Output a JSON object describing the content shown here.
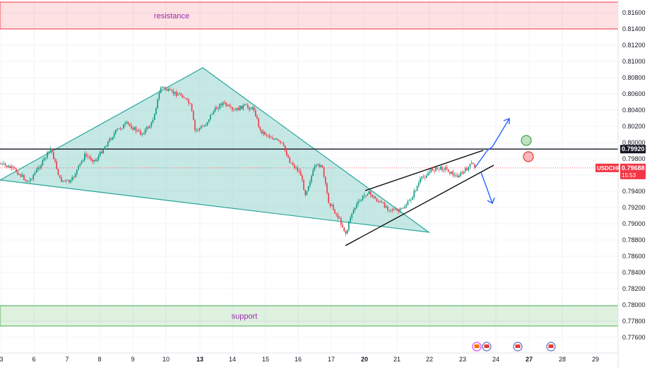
{
  "chart_data": {
    "type": "candlestick",
    "symbol": "USDCHF",
    "y_axis": {
      "min": 0.776,
      "max": 0.8172,
      "ticks": [
        "0.81600",
        "0.81400",
        "0.81200",
        "0.81000",
        "0.80800",
        "0.80600",
        "0.80400",
        "0.80200",
        "0.80000",
        "0.79800",
        "0.79600",
        "0.79400",
        "0.79200",
        "0.79000",
        "0.78800",
        "0.78600",
        "0.78400",
        "0.78200",
        "0.78000",
        "0.77800",
        "0.77600"
      ],
      "tick_values": [
        0.816,
        0.814,
        0.812,
        0.81,
        0.808,
        0.806,
        0.804,
        0.802,
        0.8,
        0.798,
        0.796,
        0.794,
        0.792,
        0.79,
        0.788,
        0.786,
        0.784,
        0.782,
        0.78,
        0.778,
        0.776
      ]
    },
    "x_axis": {
      "labels": [
        "3",
        "6",
        "7",
        "8",
        "9",
        "10",
        "13",
        "14",
        "15",
        "16",
        "17",
        "20",
        "21",
        "22",
        "23",
        "24",
        "27",
        "28",
        "29"
      ],
      "bold": [
        "13",
        "20",
        "27"
      ]
    },
    "zones": [
      {
        "label": "resistance",
        "from": 0.814,
        "to": 0.8172,
        "color": "#f23645"
      },
      {
        "label": "support",
        "from": 0.7774,
        "to": 0.7799,
        "color": "#4caf50"
      }
    ],
    "level_line": {
      "value": "0.79920",
      "price": 0.7992
    },
    "last_price": {
      "symbol": "USDCHF",
      "value": "0.79688",
      "countdown": "15:53",
      "price": 0.79688
    },
    "colors": {
      "up": "#089981",
      "down": "#f23645",
      "triangle_fill": "#b2dfdb",
      "triangle_stroke": "#26a69a",
      "projection": "#2962ff"
    }
  }
}
